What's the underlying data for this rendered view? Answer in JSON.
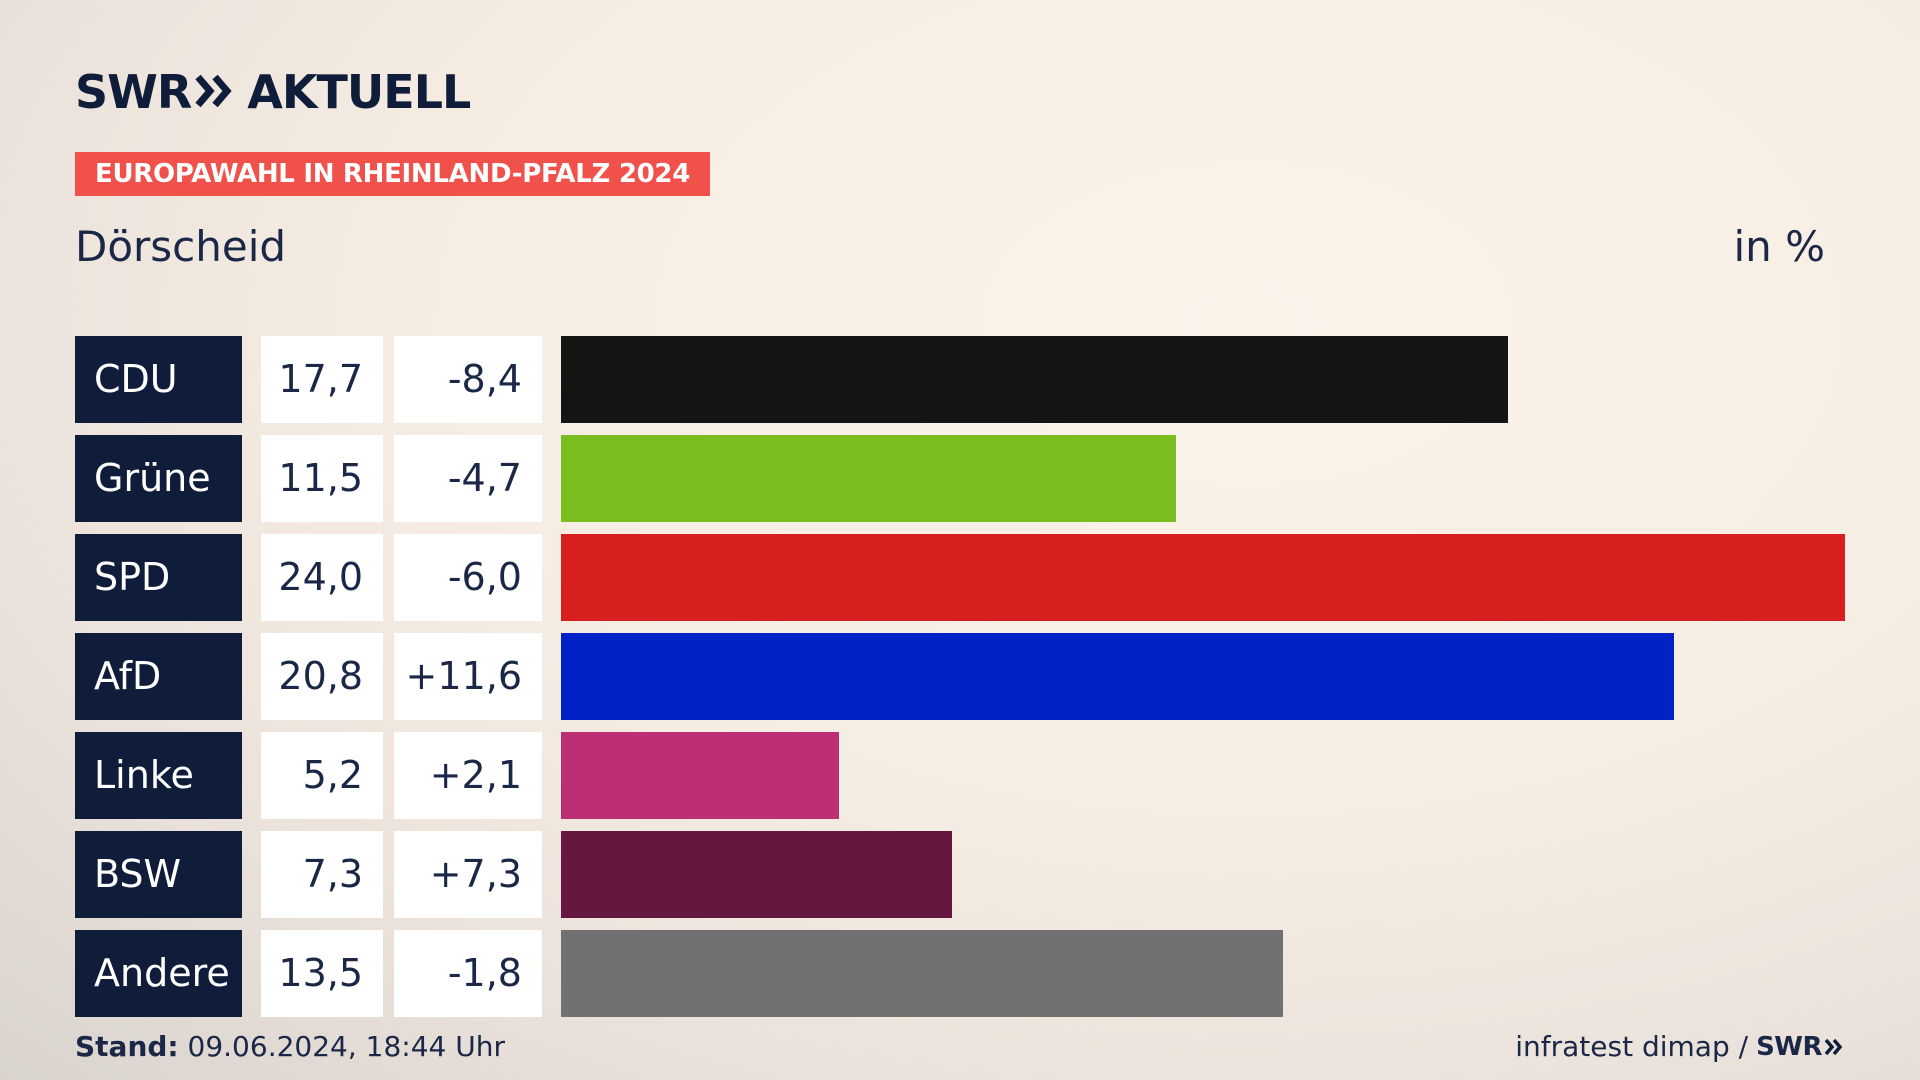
{
  "header": {
    "logo_left": "SWR",
    "logo_right": "AKTUELL",
    "badge": "EUROPAWAHL IN RHEINLAND-PFALZ 2024",
    "place": "Dörscheid",
    "unit": "in %"
  },
  "colors": {
    "navy": "#0f1d3a",
    "badge": "#f0524b"
  },
  "chart_data": {
    "type": "bar",
    "orientation": "horizontal",
    "categories": [
      "CDU",
      "Grüne",
      "SPD",
      "AfD",
      "Linke",
      "BSW",
      "Andere"
    ],
    "values": [
      17.7,
      11.5,
      24.0,
      20.8,
      5.2,
      7.3,
      13.5
    ],
    "value_labels": [
      "17,7",
      "11,5",
      "24,0",
      "20,8",
      "5,2",
      "7,3",
      "13,5"
    ],
    "diff_labels": [
      "-8,4",
      "-4,7",
      "-6,0",
      "+11,6",
      "+2,1",
      "+7,3",
      "-1,8"
    ],
    "colors": [
      "#141414",
      "#7abd1e",
      "#d71f1f",
      "#0022c6",
      "#bc2f74",
      "#66173f",
      "#6f7173"
    ],
    "xlim": [
      0,
      24.0
    ]
  },
  "footer": {
    "stand_label": "Stand:",
    "stand_value": "09.06.2024, 18:44 Uhr",
    "source": "infratest dimap /",
    "source_logo": "SWR"
  }
}
